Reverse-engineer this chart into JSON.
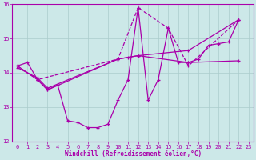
{
  "bg_color": "#cce8e8",
  "grid_color": "#aacccc",
  "line_color": "#aa00aa",
  "xlabel": "Windchill (Refroidissement éolien,°C)",
  "xlim": [
    -0.5,
    23.5
  ],
  "ylim": [
    12,
    16
  ],
  "yticks": [
    12,
    13,
    14,
    15,
    16
  ],
  "xticks": [
    0,
    1,
    2,
    3,
    4,
    5,
    6,
    7,
    8,
    9,
    10,
    11,
    12,
    13,
    14,
    15,
    16,
    17,
    18,
    19,
    20,
    21,
    22,
    23
  ],
  "series0_x": [
    0,
    1,
    2,
    3,
    4,
    5,
    6,
    7,
    8,
    9,
    10,
    11,
    12,
    13,
    14,
    15,
    16,
    17,
    18,
    19,
    20,
    21,
    22
  ],
  "series0_y": [
    14.2,
    14.3,
    13.8,
    13.5,
    13.65,
    12.6,
    12.55,
    12.4,
    12.4,
    12.5,
    13.2,
    13.8,
    15.9,
    13.2,
    13.8,
    15.3,
    14.3,
    14.3,
    14.4,
    14.8,
    14.85,
    14.9,
    15.55
  ],
  "series1_x": [
    0,
    2,
    3,
    10,
    11,
    12,
    17,
    22
  ],
  "series1_y": [
    14.2,
    13.8,
    13.5,
    14.4,
    14.45,
    14.5,
    14.3,
    14.35
  ],
  "series1_style": "-",
  "series2_x": [
    0,
    2,
    3,
    10,
    12,
    17,
    22
  ],
  "series2_y": [
    14.15,
    13.85,
    13.55,
    14.4,
    14.5,
    14.65,
    15.55
  ],
  "series2_style": "-",
  "series3_x": [
    0,
    2,
    10,
    12,
    15,
    17,
    22
  ],
  "series3_y": [
    14.2,
    13.8,
    14.4,
    15.9,
    15.3,
    14.2,
    15.55
  ],
  "series3_style": "--"
}
